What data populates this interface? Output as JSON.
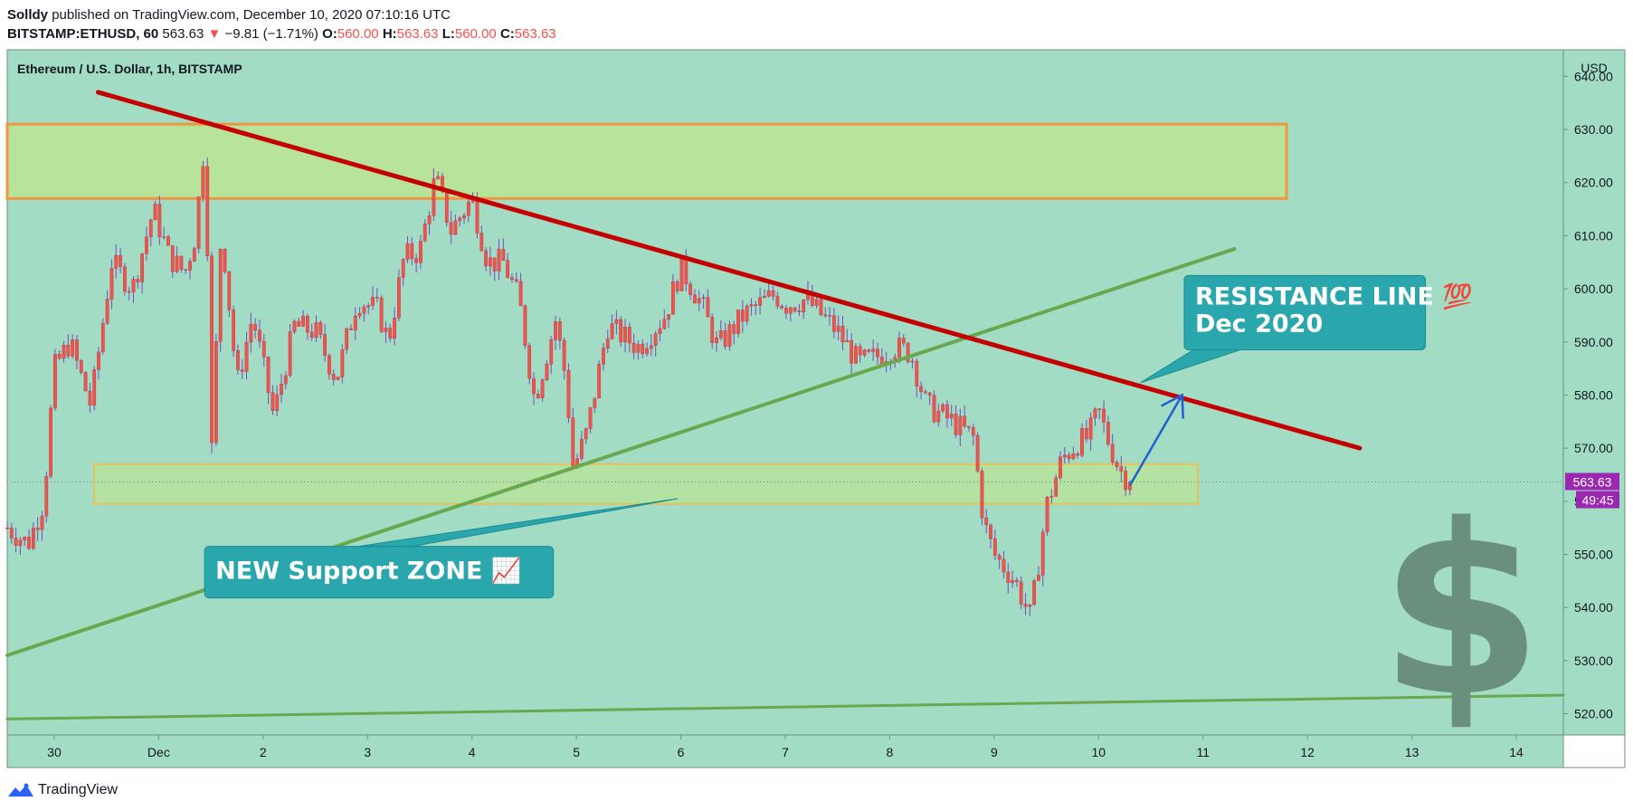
{
  "header": {
    "author": "Solldy",
    "published_text": "published on TradingView.com, December 10, 2020 07:10:16 UTC",
    "symbol": "BITSTAMP:ETHUSD, 60",
    "last": "563.63",
    "change": "−9.81 (−1.71%)",
    "o_label": "O:",
    "o_value": "560.00",
    "h_label": "H:",
    "h_value": "563.63",
    "l_label": "L:",
    "l_value": "560.00",
    "c_label": "C:",
    "c_value": "563.63"
  },
  "footer": {
    "brand": "TradingView"
  },
  "colors": {
    "background": "#a3dcc4",
    "up": "#ef5350",
    "down": "#ef5350",
    "resistance": "#c40000",
    "support_trend": "#6aa84f",
    "zone_fill": "#b7e39b",
    "zone_border_top": "#f0963c",
    "zone_border_bottom": "#e6c25a",
    "callout": "#2aa6ad",
    "dollar": "#6b8f7d",
    "price_tag": "#9c27b0"
  },
  "chart_data": {
    "type": "candlestick",
    "title": "Ethereum / U.S. Dollar, 1h, BITSTAMP",
    "ylabel": "USD",
    "ylim": [
      516,
      645
    ],
    "y_ticks": [
      640,
      630,
      620,
      610,
      600,
      590,
      580,
      570,
      560,
      550,
      540,
      530,
      520
    ],
    "y_tick_labels": [
      "640.00",
      "630.00",
      "620.00",
      "610.00",
      "600.00",
      "590.00",
      "580.00",
      "570.00",
      "560.00",
      "550.00",
      "540.00",
      "530.00",
      "520.00"
    ],
    "xlim": [
      -0.45,
      14.45
    ],
    "x_ticks": [
      0,
      1,
      2,
      3,
      4,
      5,
      6,
      7,
      8,
      9,
      10,
      11,
      12,
      13,
      14
    ],
    "x_tick_labels": [
      "30",
      "Dec",
      "2",
      "3",
      "4",
      "5",
      "6",
      "7",
      "8",
      "9",
      "10",
      "11",
      "12",
      "13",
      "14"
    ],
    "x_unit": "days (0 = Nov 30, 2020)",
    "price_path": [
      [
        -0.45,
        555
      ],
      [
        -0.25,
        552
      ],
      [
        -0.1,
        560
      ],
      [
        0.0,
        585
      ],
      [
        0.15,
        590
      ],
      [
        0.35,
        578
      ],
      [
        0.55,
        605
      ],
      [
        0.75,
        600
      ],
      [
        0.95,
        615
      ],
      [
        1.1,
        606
      ],
      [
        1.25,
        603
      ],
      [
        1.35,
        610
      ],
      [
        1.45,
        630
      ],
      [
        1.5,
        566
      ],
      [
        1.6,
        612
      ],
      [
        1.75,
        582
      ],
      [
        1.9,
        595
      ],
      [
        2.1,
        576
      ],
      [
        2.3,
        593
      ],
      [
        2.5,
        592
      ],
      [
        2.7,
        583
      ],
      [
        2.9,
        598
      ],
      [
        3.1,
        596
      ],
      [
        3.2,
        590
      ],
      [
        3.35,
        606
      ],
      [
        3.5,
        607
      ],
      [
        3.65,
        621
      ],
      [
        3.8,
        611
      ],
      [
        4.0,
        617
      ],
      [
        4.15,
        605
      ],
      [
        4.3,
        605
      ],
      [
        4.45,
        598
      ],
      [
        4.6,
        579
      ],
      [
        4.8,
        594
      ],
      [
        4.9,
        583
      ],
      [
        4.97,
        566
      ],
      [
        5.1,
        573
      ],
      [
        5.3,
        593
      ],
      [
        5.6,
        589
      ],
      [
        5.85,
        595
      ],
      [
        6.0,
        604
      ],
      [
        6.2,
        597
      ],
      [
        6.35,
        589
      ],
      [
        6.6,
        595
      ],
      [
        6.9,
        599
      ],
      [
        7.0,
        597
      ],
      [
        7.2,
        598
      ],
      [
        7.5,
        592
      ],
      [
        7.7,
        586
      ],
      [
        7.85,
        587
      ],
      [
        8.05,
        589
      ],
      [
        8.2,
        588
      ],
      [
        8.35,
        578
      ],
      [
        8.6,
        575
      ],
      [
        8.8,
        572
      ],
      [
        8.9,
        556
      ],
      [
        9.0,
        550
      ],
      [
        9.2,
        545
      ],
      [
        9.35,
        538
      ],
      [
        9.5,
        559
      ],
      [
        9.65,
        568
      ],
      [
        9.8,
        571
      ],
      [
        9.9,
        572
      ],
      [
        10.0,
        577
      ],
      [
        10.1,
        571
      ],
      [
        10.2,
        566
      ],
      [
        10.3,
        563.63
      ]
    ],
    "last_price": 563.63,
    "last_price_label": "563.63",
    "countdown_label": "49:45",
    "drawings": {
      "resistance_line": [
        [
          0.42,
          637
        ],
        [
          12.5,
          570
        ]
      ],
      "rising_support_line": [
        [
          -0.45,
          531
        ],
        [
          11.3,
          607.5
        ]
      ],
      "long_support_line": [
        [
          -0.45,
          519
        ],
        [
          14.45,
          523.5
        ]
      ],
      "resistance_zone": {
        "x": [
          -0.45,
          11.8
        ],
        "y": [
          617,
          631
        ]
      },
      "support_zone": {
        "x": [
          0.38,
          10.95
        ],
        "y": [
          559.5,
          567
        ]
      },
      "projection_arrow": [
        [
          10.3,
          563
        ],
        [
          10.8,
          580
        ]
      ]
    },
    "annotations": [
      {
        "lines": [
          "RESISTANCE LINE 💯",
          "Dec 2020"
        ]
      },
      {
        "lines": [
          "NEW Support ZONE 📈"
        ]
      }
    ]
  }
}
